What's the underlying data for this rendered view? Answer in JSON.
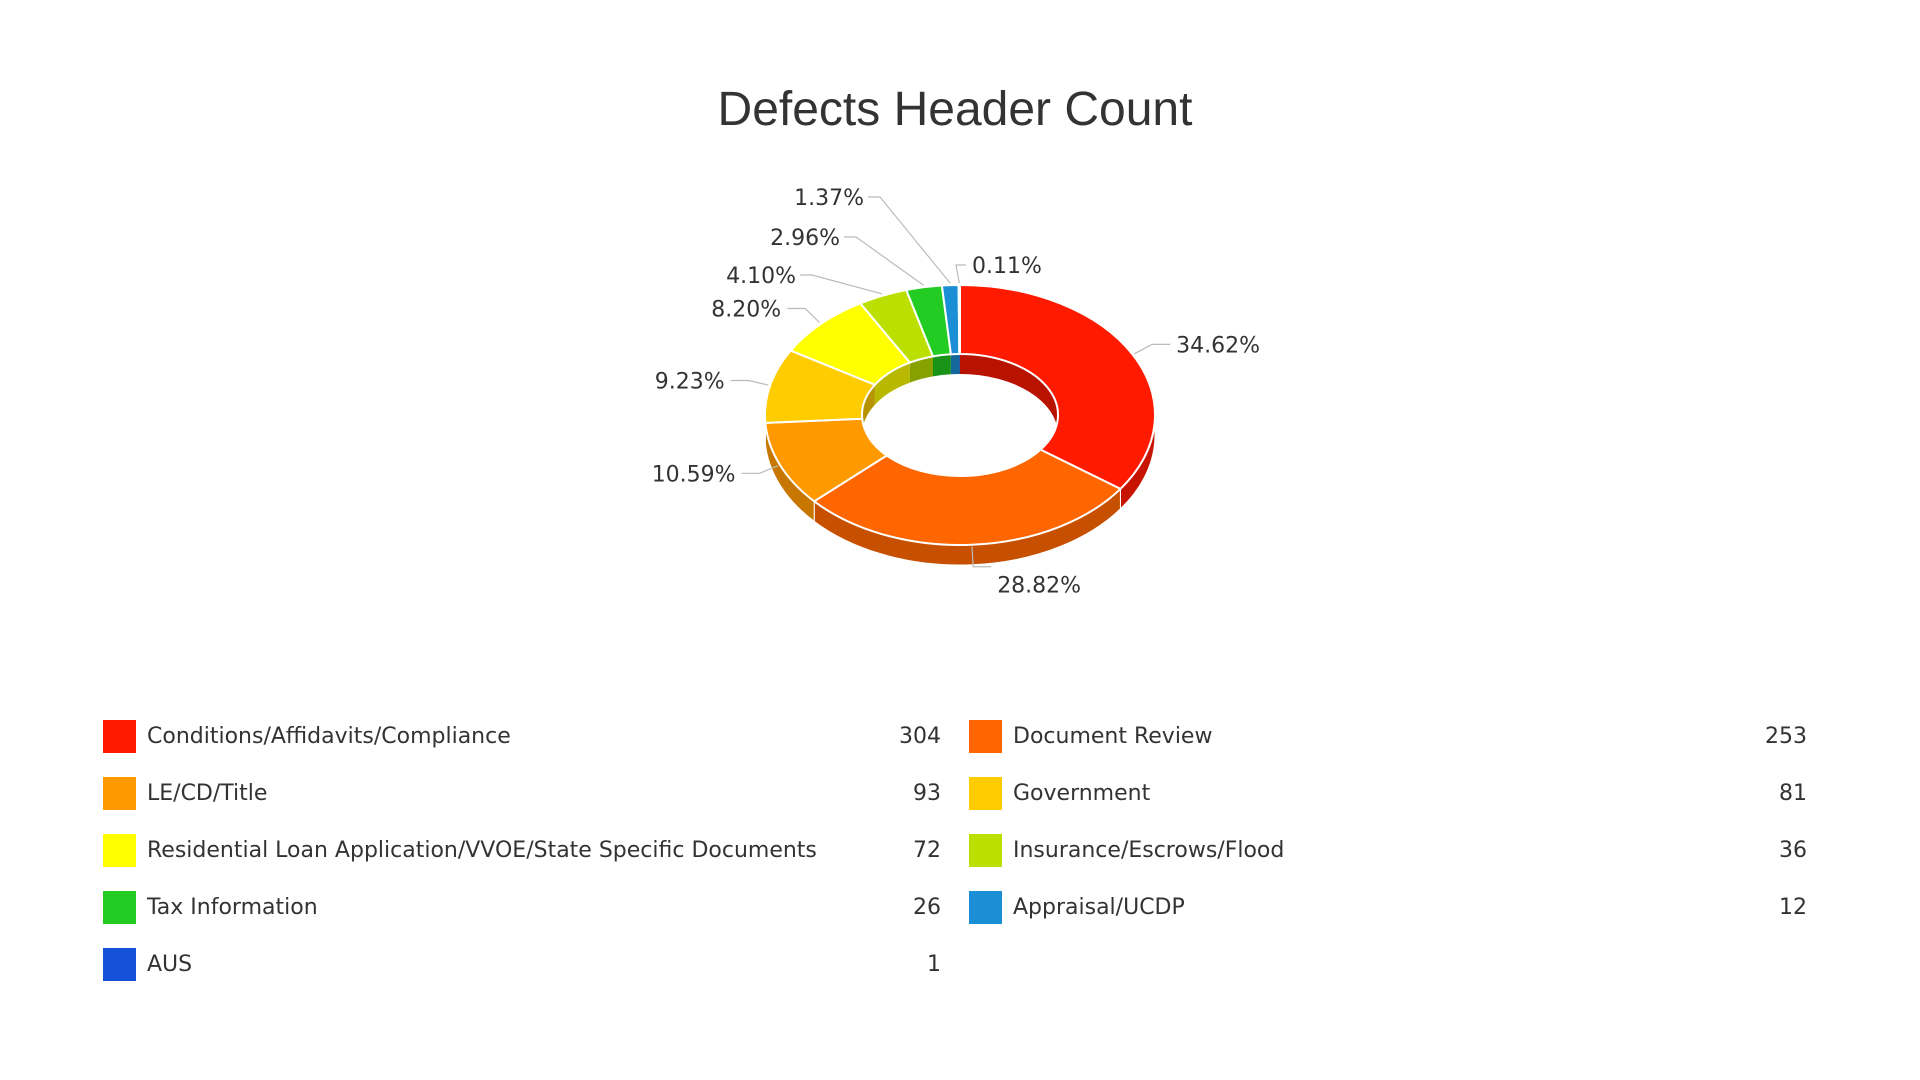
{
  "chart_data": {
    "type": "pie",
    "variant": "donut-3d",
    "title": "Defects Header Count",
    "legend_position": "bottom",
    "slices": [
      {
        "name": "Conditions/Affidavits/Compliance",
        "value": 304,
        "percent": 34.62,
        "percent_label": "34.62%",
        "color": "#ff1a00"
      },
      {
        "name": "Document Review",
        "value": 253,
        "percent": 28.82,
        "percent_label": "28.82%",
        "color": "#ff6600"
      },
      {
        "name": "LE/CD/Title",
        "value": 93,
        "percent": 10.59,
        "percent_label": "10.59%",
        "color": "#ff9900"
      },
      {
        "name": "Government",
        "value": 81,
        "percent": 9.23,
        "percent_label": "9.23%",
        "color": "#ffcc00"
      },
      {
        "name": "Residential Loan Application/VVOE/State Specific Documents",
        "value": 72,
        "percent": 8.2,
        "percent_label": "8.20%",
        "color": "#ffff00"
      },
      {
        "name": "Insurance/Escrows/Flood",
        "value": 36,
        "percent": 4.1,
        "percent_label": "4.10%",
        "color": "#bbe000"
      },
      {
        "name": "Tax Information",
        "value": 26,
        "percent": 2.96,
        "percent_label": "2.96%",
        "color": "#22cc22"
      },
      {
        "name": "Appraisal/UCDP",
        "value": 12,
        "percent": 1.37,
        "percent_label": "1.37%",
        "color": "#1a8fd6"
      },
      {
        "name": "AUS",
        "value": 1,
        "percent": 0.11,
        "percent_label": "0.11%",
        "color": "#1552d9"
      }
    ]
  }
}
